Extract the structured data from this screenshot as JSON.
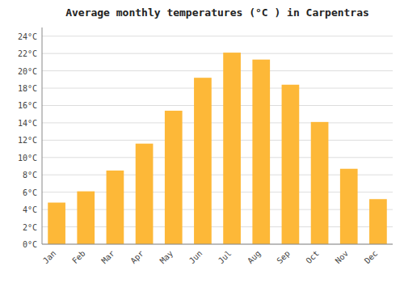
{
  "chart_data": {
    "type": "bar",
    "title": "Average monthly temperatures (°C ) in Carpentras",
    "categories": [
      "Jan",
      "Feb",
      "Mar",
      "Apr",
      "May",
      "Jun",
      "Jul",
      "Aug",
      "Sep",
      "Oct",
      "Nov",
      "Dec"
    ],
    "values": [
      4.8,
      6.1,
      8.5,
      11.6,
      15.4,
      19.2,
      22.1,
      21.3,
      18.4,
      14.1,
      8.7,
      5.2
    ],
    "color": "#FDB838",
    "ylim": [
      0,
      25
    ],
    "yticks": [
      {
        "value": 0,
        "label": "0°C"
      },
      {
        "value": 2,
        "label": "2°C"
      },
      {
        "value": 4,
        "label": "4°C"
      },
      {
        "value": 6,
        "label": "6°C"
      },
      {
        "value": 8,
        "label": "8°C"
      },
      {
        "value": 10,
        "label": "10°C"
      },
      {
        "value": 12,
        "label": "12°C"
      },
      {
        "value": 14,
        "label": "14°C"
      },
      {
        "value": 16,
        "label": "16°C"
      },
      {
        "value": 18,
        "label": "18°C"
      },
      {
        "value": 20,
        "label": "20°C"
      },
      {
        "value": 22,
        "label": "22°C"
      },
      {
        "value": 24,
        "label": "24°C"
      }
    ],
    "grid": true
  }
}
